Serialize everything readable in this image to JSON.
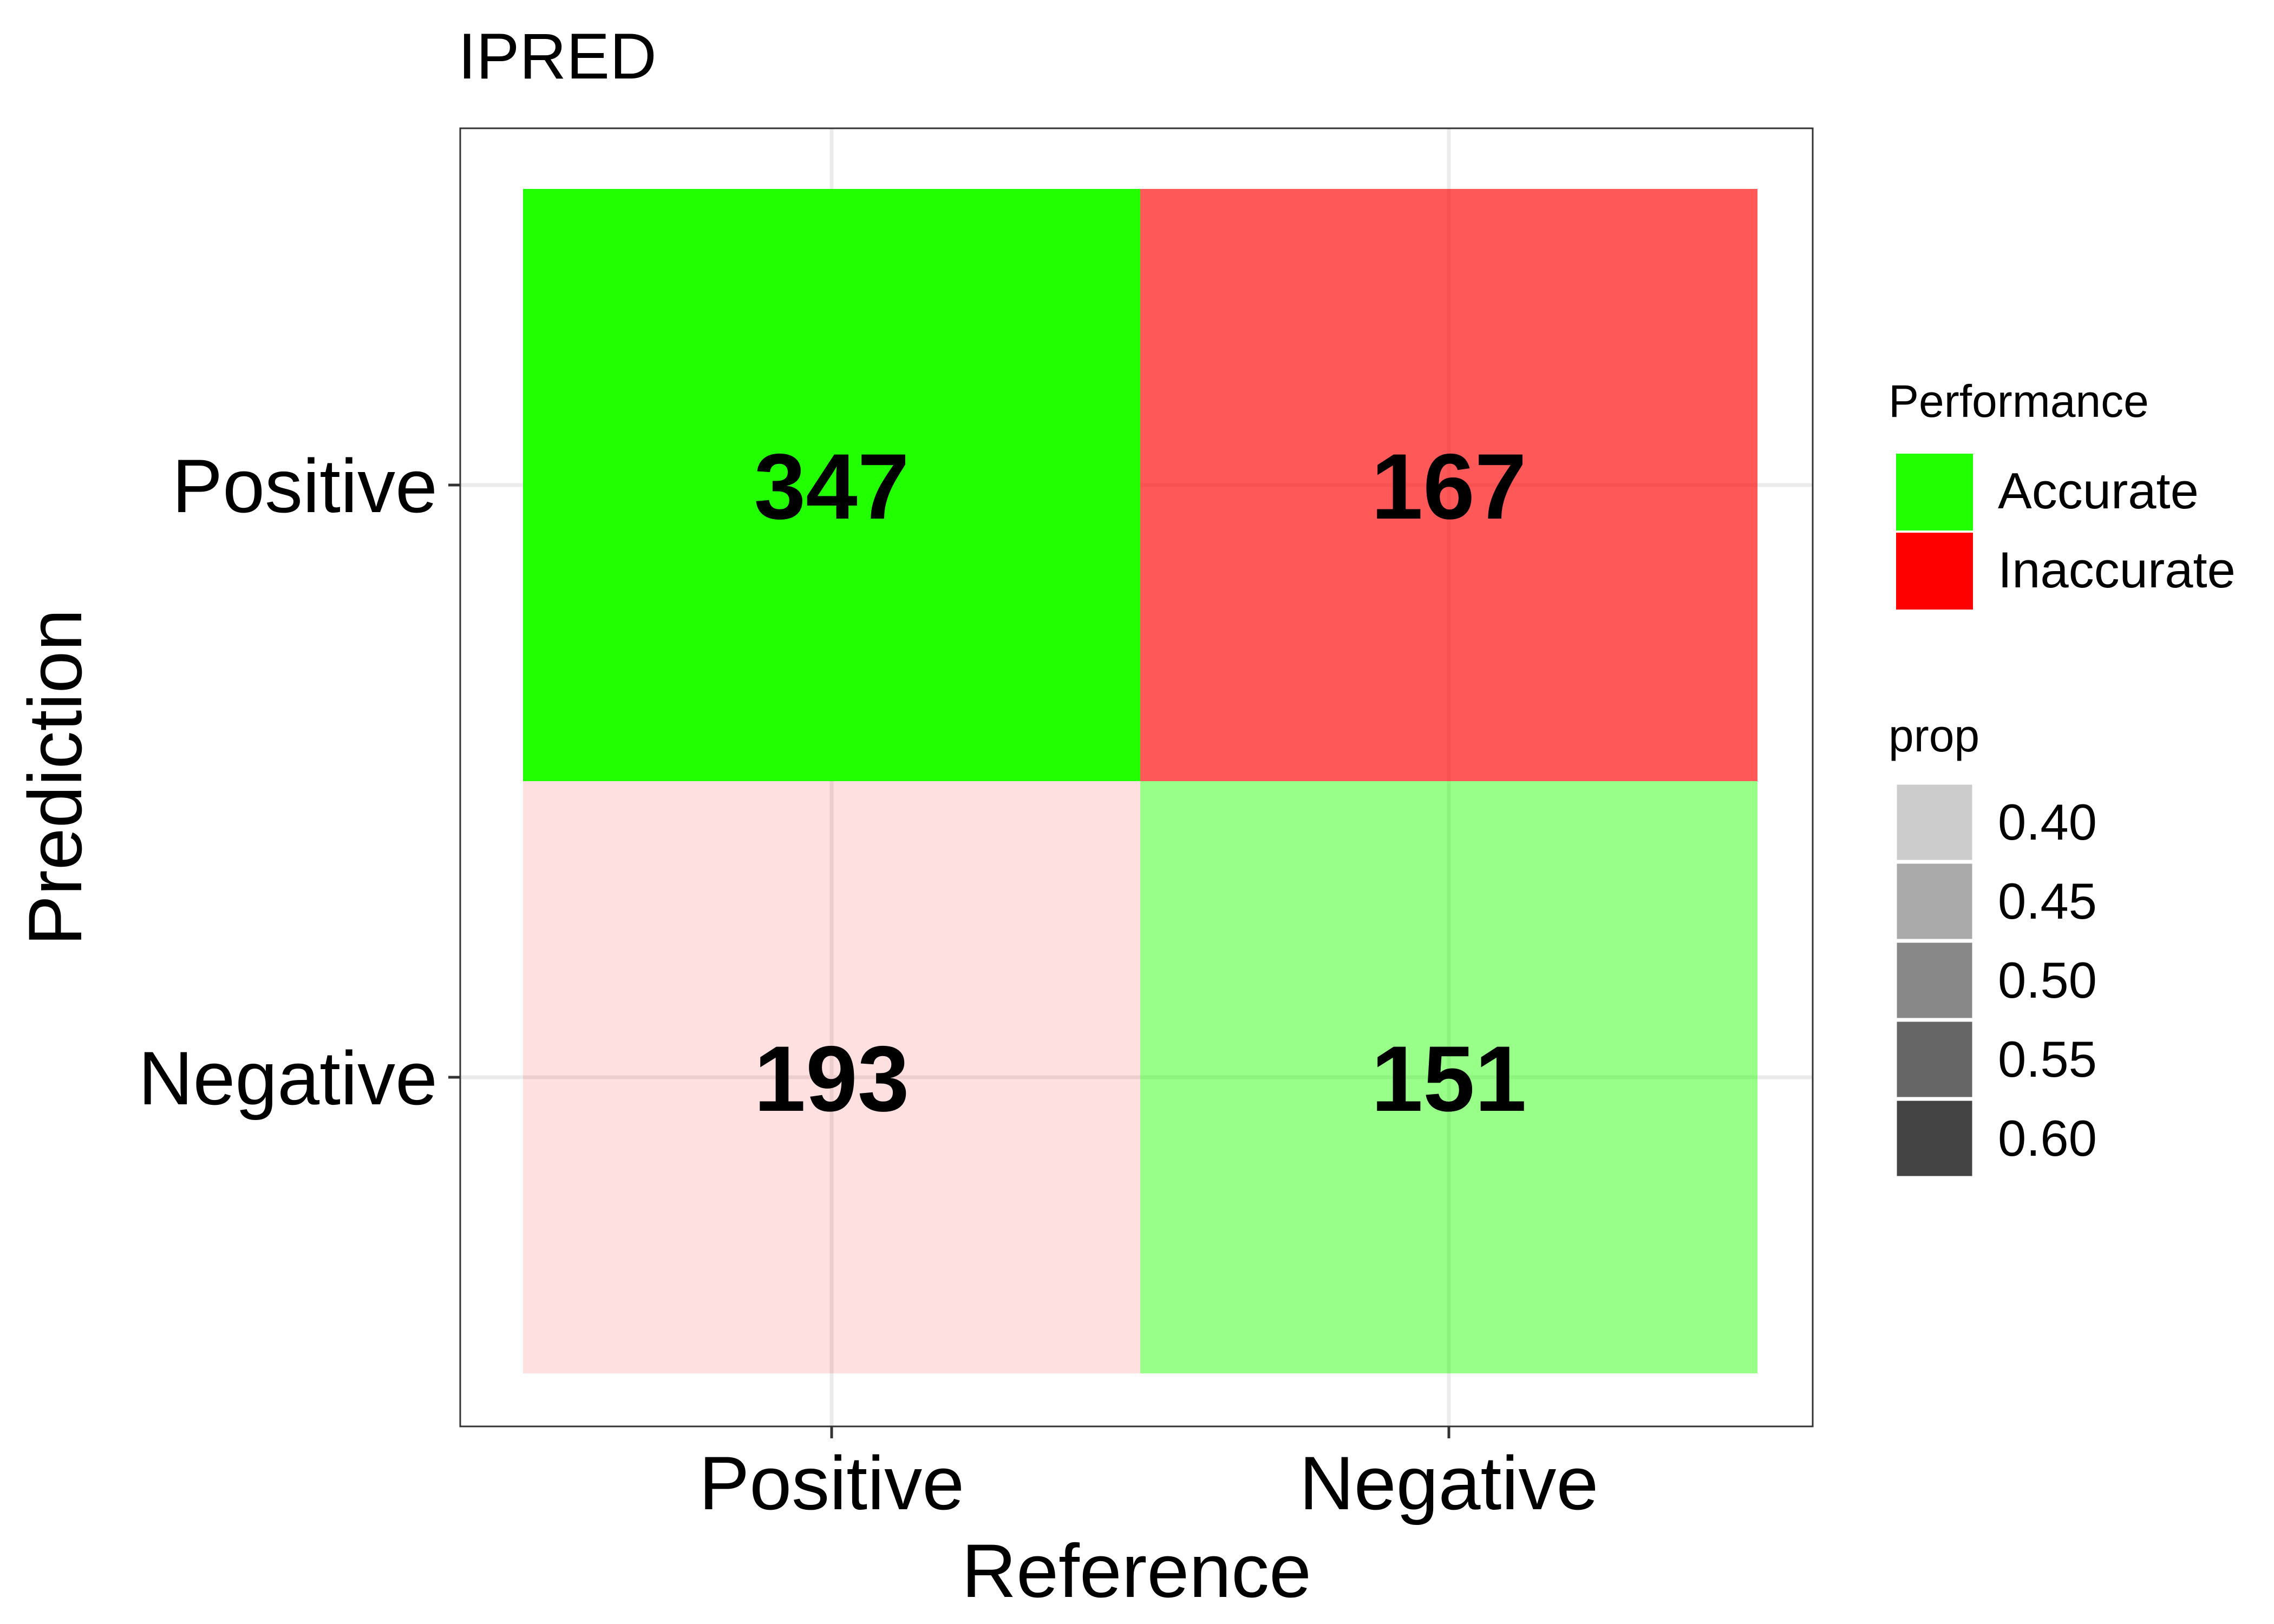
{
  "chart_data": {
    "type": "heatmap",
    "title": "IPRED",
    "xlabel": "Reference",
    "ylabel": "Prediction",
    "x_categories": [
      "Positive",
      "Negative"
    ],
    "y_categories": [
      "Positive",
      "Negative"
    ],
    "cells": [
      {
        "reference": "Positive",
        "prediction": "Positive",
        "count": 347,
        "performance": "Accurate",
        "prop": 0.64
      },
      {
        "reference": "Negative",
        "prediction": "Positive",
        "count": 167,
        "performance": "Inaccurate",
        "prop": 0.53
      },
      {
        "reference": "Positive",
        "prediction": "Negative",
        "count": 193,
        "performance": "Inaccurate",
        "prop": 0.36
      },
      {
        "reference": "Negative",
        "prediction": "Negative",
        "count": 151,
        "performance": "Accurate",
        "prop": 0.47
      }
    ],
    "grid": true,
    "legend_position": "right",
    "legends": {
      "performance": {
        "title": "Performance",
        "items": [
          {
            "label": "Accurate",
            "color": "#22ff00"
          },
          {
            "label": "Inaccurate",
            "color": "#ff0000"
          }
        ]
      },
      "prop": {
        "title": "prop",
        "items": [
          {
            "label": "0.40",
            "value": 0.4
          },
          {
            "label": "0.45",
            "value": 0.45
          },
          {
            "label": "0.50",
            "value": 0.5
          },
          {
            "label": "0.55",
            "value": 0.55
          },
          {
            "label": "0.60",
            "value": 0.6
          }
        ]
      }
    }
  }
}
